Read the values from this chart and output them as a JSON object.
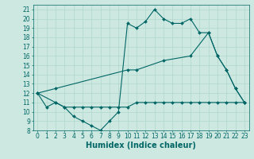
{
  "xlabel": "Humidex (Indice chaleur)",
  "background_color": "#cce8e0",
  "line_color": "#006666",
  "xlim": [
    -0.5,
    23.5
  ],
  "ylim": [
    8,
    21.5
  ],
  "xticks": [
    0,
    1,
    2,
    3,
    4,
    5,
    6,
    7,
    8,
    9,
    10,
    11,
    12,
    13,
    14,
    15,
    16,
    17,
    18,
    19,
    20,
    21,
    22,
    23
  ],
  "yticks": [
    8,
    9,
    10,
    11,
    12,
    13,
    14,
    15,
    16,
    17,
    18,
    19,
    20,
    21
  ],
  "line1_x": [
    0,
    1,
    2,
    3,
    4,
    5,
    6,
    7,
    8,
    9,
    10,
    11,
    12,
    13,
    14,
    15,
    16,
    17,
    18,
    19,
    20,
    21,
    22,
    23
  ],
  "line1_y": [
    12.0,
    10.5,
    11.0,
    10.5,
    9.5,
    9.0,
    8.5,
    8.0,
    9.0,
    10.0,
    19.5,
    19.0,
    19.7,
    21.0,
    20.0,
    19.5,
    19.5,
    20.0,
    18.5,
    18.5,
    16.0,
    14.5,
    12.5,
    11.0
  ],
  "line2_x": [
    0,
    2,
    3,
    4,
    5,
    6,
    7,
    8,
    9,
    10,
    11,
    12,
    13,
    14,
    15,
    16,
    17,
    18,
    19,
    20,
    21,
    22,
    23
  ],
  "line2_y": [
    12.0,
    11.0,
    10.5,
    10.5,
    10.5,
    10.5,
    10.5,
    10.5,
    10.5,
    10.5,
    11.0,
    11.0,
    11.0,
    11.0,
    11.0,
    11.0,
    11.0,
    11.0,
    11.0,
    11.0,
    11.0,
    11.0,
    11.0
  ],
  "line3_x": [
    0,
    2,
    10,
    11,
    14,
    17,
    19,
    20,
    21,
    22,
    23
  ],
  "line3_y": [
    12.0,
    12.5,
    14.5,
    14.5,
    15.5,
    16.0,
    18.5,
    16.0,
    14.5,
    12.5,
    11.0
  ],
  "grid_color": "#b0d8cc",
  "tick_fontsize": 5.5,
  "xlabel_fontsize": 7
}
